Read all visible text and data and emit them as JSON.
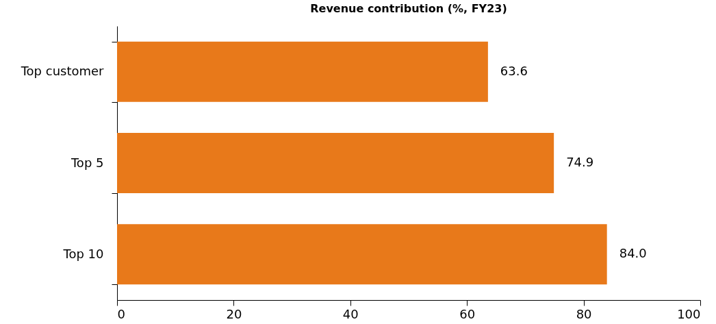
{
  "chart_data": {
    "type": "bar",
    "orientation": "horizontal",
    "title": "Revenue contribution (%, FY23)",
    "categories": [
      "Top customer",
      "Top 5",
      "Top 10"
    ],
    "values": [
      63.6,
      74.9,
      84.0
    ],
    "value_labels": [
      "63.6",
      "74.9",
      "84.0"
    ],
    "color": "#e8791a",
    "xlim": [
      0,
      100
    ],
    "xticks": [
      0,
      20,
      40,
      60,
      80,
      100
    ],
    "grid": false
  }
}
